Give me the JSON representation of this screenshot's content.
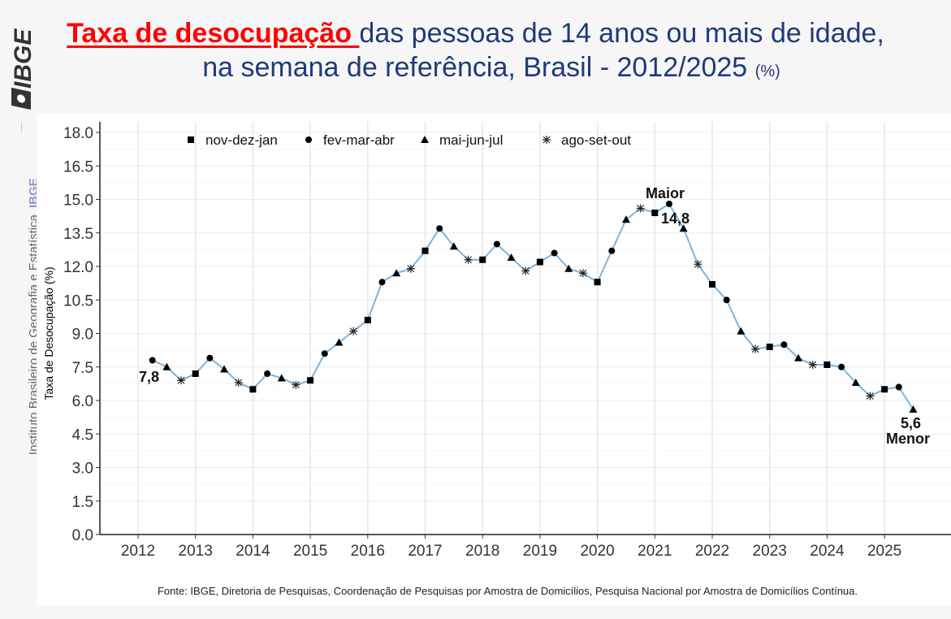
{
  "header": {
    "title_highlight": "Taxa de desocupação ",
    "title_rest": "das pessoas de 14 anos ou mais de idade,",
    "title_line2": "na semana de referência, Brasil - 2012/2025",
    "title_unit": "(%)"
  },
  "sidebar": {
    "logo_text": "IBGE",
    "institution": "Instituto Brasileiro de Geografia e Estatística",
    "acronym": "IBGE"
  },
  "footer": {
    "source": "Fonte: IBGE, Diretoria de Pesquisas, Coordenação de Pesquisas por Amostra de Domicílios, Pesquisa Nacional por Amostra de Domicílios Contínua."
  },
  "colors": {
    "line": "#7ab4e0",
    "title_highlight": "#ff0000",
    "title": "#1f3a7a",
    "markers": "#000000"
  },
  "chart_data": {
    "type": "line",
    "ylabel": "Taxa de Desocupação (%)",
    "ylim": [
      0,
      18
    ],
    "yticks": [
      "0.0",
      "1.5",
      "3.0",
      "4.5",
      "6.0",
      "7.5",
      "9.0",
      "10.5",
      "12.0",
      "13.5",
      "15.0",
      "16.5",
      "18.0"
    ],
    "xticks": [
      "2012",
      "2013",
      "2014",
      "2015",
      "2016",
      "2017",
      "2018",
      "2019",
      "2020",
      "2021",
      "2022",
      "2023",
      "2024",
      "2025"
    ],
    "grid": true,
    "legend_position": "top",
    "legend": [
      {
        "label": "nov-dez-jan",
        "marker": "square"
      },
      {
        "label": "fev-mar-abr",
        "marker": "circle"
      },
      {
        "label": "mai-jun-jul",
        "marker": "triangle"
      },
      {
        "label": "ago-set-out",
        "marker": "asterisk"
      }
    ],
    "points": [
      {
        "year": 2012,
        "period": "fev-mar-abr",
        "value": 7.8
      },
      {
        "year": 2012,
        "period": "mai-jun-jul",
        "value": 7.5
      },
      {
        "year": 2012,
        "period": "ago-set-out",
        "value": 6.9
      },
      {
        "year": 2013,
        "period": "nov-dez-jan",
        "value": 7.2
      },
      {
        "year": 2013,
        "period": "fev-mar-abr",
        "value": 7.9
      },
      {
        "year": 2013,
        "period": "mai-jun-jul",
        "value": 7.4
      },
      {
        "year": 2013,
        "period": "ago-set-out",
        "value": 6.8
      },
      {
        "year": 2014,
        "period": "nov-dez-jan",
        "value": 6.5
      },
      {
        "year": 2014,
        "period": "fev-mar-abr",
        "value": 7.2
      },
      {
        "year": 2014,
        "period": "mai-jun-jul",
        "value": 7.0
      },
      {
        "year": 2014,
        "period": "ago-set-out",
        "value": 6.7
      },
      {
        "year": 2015,
        "period": "nov-dez-jan",
        "value": 6.9
      },
      {
        "year": 2015,
        "period": "fev-mar-abr",
        "value": 8.1
      },
      {
        "year": 2015,
        "period": "mai-jun-jul",
        "value": 8.6
      },
      {
        "year": 2015,
        "period": "ago-set-out",
        "value": 9.1
      },
      {
        "year": 2016,
        "period": "nov-dez-jan",
        "value": 9.6
      },
      {
        "year": 2016,
        "period": "fev-mar-abr",
        "value": 11.3
      },
      {
        "year": 2016,
        "period": "mai-jun-jul",
        "value": 11.7
      },
      {
        "year": 2016,
        "period": "ago-set-out",
        "value": 11.9
      },
      {
        "year": 2017,
        "period": "nov-dez-jan",
        "value": 12.7
      },
      {
        "year": 2017,
        "period": "fev-mar-abr",
        "value": 13.7
      },
      {
        "year": 2017,
        "period": "mai-jun-jul",
        "value": 12.9
      },
      {
        "year": 2017,
        "period": "ago-set-out",
        "value": 12.3
      },
      {
        "year": 2018,
        "period": "nov-dez-jan",
        "value": 12.3
      },
      {
        "year": 2018,
        "period": "fev-mar-abr",
        "value": 13.0
      },
      {
        "year": 2018,
        "period": "mai-jun-jul",
        "value": 12.4
      },
      {
        "year": 2018,
        "period": "ago-set-out",
        "value": 11.8
      },
      {
        "year": 2019,
        "period": "nov-dez-jan",
        "value": 12.2
      },
      {
        "year": 2019,
        "period": "fev-mar-abr",
        "value": 12.6
      },
      {
        "year": 2019,
        "period": "mai-jun-jul",
        "value": 11.9
      },
      {
        "year": 2019,
        "period": "ago-set-out",
        "value": 11.7
      },
      {
        "year": 2020,
        "period": "nov-dez-jan",
        "value": 11.3
      },
      {
        "year": 2020,
        "period": "fev-mar-abr",
        "value": 12.7
      },
      {
        "year": 2020,
        "period": "mai-jun-jul",
        "value": 14.1
      },
      {
        "year": 2020,
        "period": "ago-set-out",
        "value": 14.6
      },
      {
        "year": 2021,
        "period": "nov-dez-jan",
        "value": 14.4
      },
      {
        "year": 2021,
        "period": "fev-mar-abr",
        "value": 14.8
      },
      {
        "year": 2021,
        "period": "mai-jun-jul",
        "value": 13.7
      },
      {
        "year": 2021,
        "period": "ago-set-out",
        "value": 12.1
      },
      {
        "year": 2022,
        "period": "nov-dez-jan",
        "value": 11.2
      },
      {
        "year": 2022,
        "period": "fev-mar-abr",
        "value": 10.5
      },
      {
        "year": 2022,
        "period": "mai-jun-jul",
        "value": 9.1
      },
      {
        "year": 2022,
        "period": "ago-set-out",
        "value": 8.3
      },
      {
        "year": 2023,
        "period": "nov-dez-jan",
        "value": 8.4
      },
      {
        "year": 2023,
        "period": "fev-mar-abr",
        "value": 8.5
      },
      {
        "year": 2023,
        "period": "mai-jun-jul",
        "value": 7.9
      },
      {
        "year": 2023,
        "period": "ago-set-out",
        "value": 7.6
      },
      {
        "year": 2024,
        "period": "nov-dez-jan",
        "value": 7.6
      },
      {
        "year": 2024,
        "period": "fev-mar-abr",
        "value": 7.5
      },
      {
        "year": 2024,
        "period": "mai-jun-jul",
        "value": 6.8
      },
      {
        "year": 2024,
        "period": "ago-set-out",
        "value": 6.2
      },
      {
        "year": 2025,
        "period": "nov-dez-jan",
        "value": 6.5
      },
      {
        "year": 2025,
        "period": "fev-mar-abr",
        "value": 6.6
      },
      {
        "year": 2025,
        "period": "mai-jun-jul",
        "value": 5.6
      }
    ],
    "annotations": [
      {
        "text": "7,8"
      },
      {
        "text": "Maior"
      },
      {
        "text": "14,8"
      },
      {
        "text": "5,6"
      },
      {
        "text": "Menor"
      }
    ]
  }
}
